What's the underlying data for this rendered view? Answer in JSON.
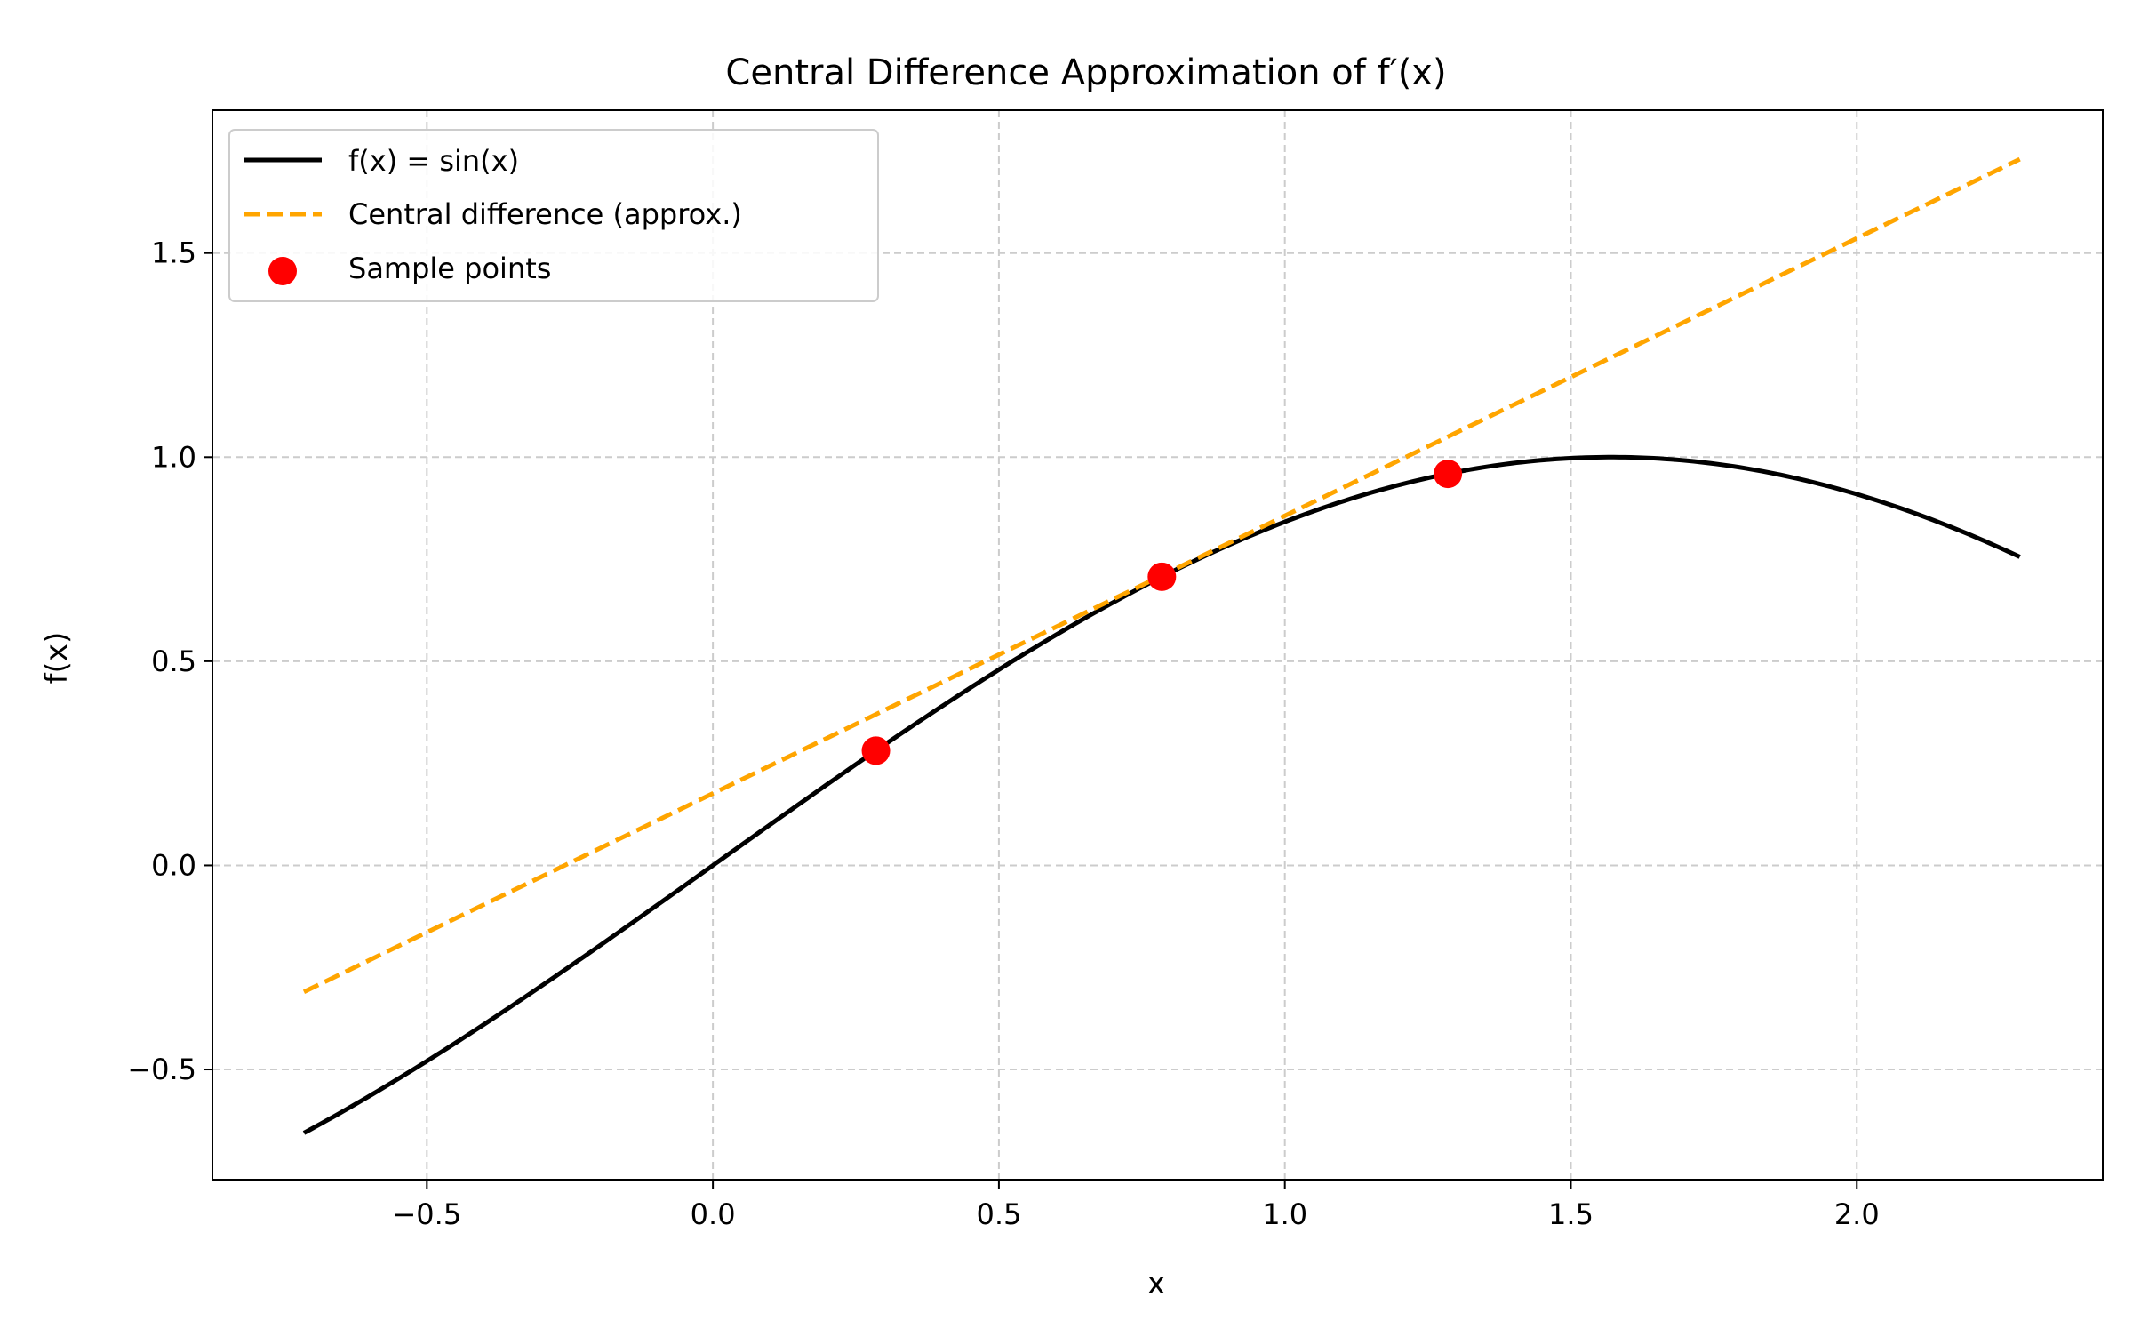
{
  "chart_data": {
    "type": "line",
    "title": "Central Difference Approximation of f′(x)",
    "xlabel": "x",
    "ylabel": "f(x)",
    "xlim": [
      -0.875,
      2.43
    ],
    "ylim": [
      -0.77,
      1.85
    ],
    "xticks": [
      -0.5,
      0.0,
      0.5,
      1.0,
      1.5,
      2.0
    ],
    "xtick_labels": [
      "−0.5",
      "0.0",
      "0.5",
      "1.0",
      "1.5",
      "2.0"
    ],
    "yticks": [
      -0.5,
      0.0,
      0.5,
      1.0,
      1.5
    ],
    "ytick_labels": [
      "−0.5",
      "0.0",
      "0.5",
      "1.0",
      "1.5"
    ],
    "grid": true,
    "legend_position": "top-left",
    "series": [
      {
        "name": "f(x) = sin(x)",
        "kind": "line",
        "style": "solid",
        "color": "#000000",
        "x": [
          -0.715,
          -0.5,
          -0.25,
          0.0,
          0.25,
          0.5,
          0.75,
          1.0,
          1.25,
          1.5,
          1.75,
          2.0,
          2.285
        ],
        "y": [
          -0.656,
          -0.479,
          -0.247,
          0.0,
          0.247,
          0.479,
          0.682,
          0.841,
          0.949,
          0.997,
          0.984,
          0.909,
          0.755
        ]
      },
      {
        "name": "Central difference (approx.)",
        "kind": "line",
        "style": "dashed",
        "color": "#ffa500",
        "x": [
          -0.715,
          2.285
        ],
        "y": [
          -0.31,
          1.73
        ]
      },
      {
        "name": "Sample points",
        "kind": "scatter",
        "color": "#ff0000",
        "x": [
          0.285,
          0.785,
          1.285
        ],
        "y": [
          0.281,
          0.707,
          0.959
        ]
      }
    ]
  }
}
